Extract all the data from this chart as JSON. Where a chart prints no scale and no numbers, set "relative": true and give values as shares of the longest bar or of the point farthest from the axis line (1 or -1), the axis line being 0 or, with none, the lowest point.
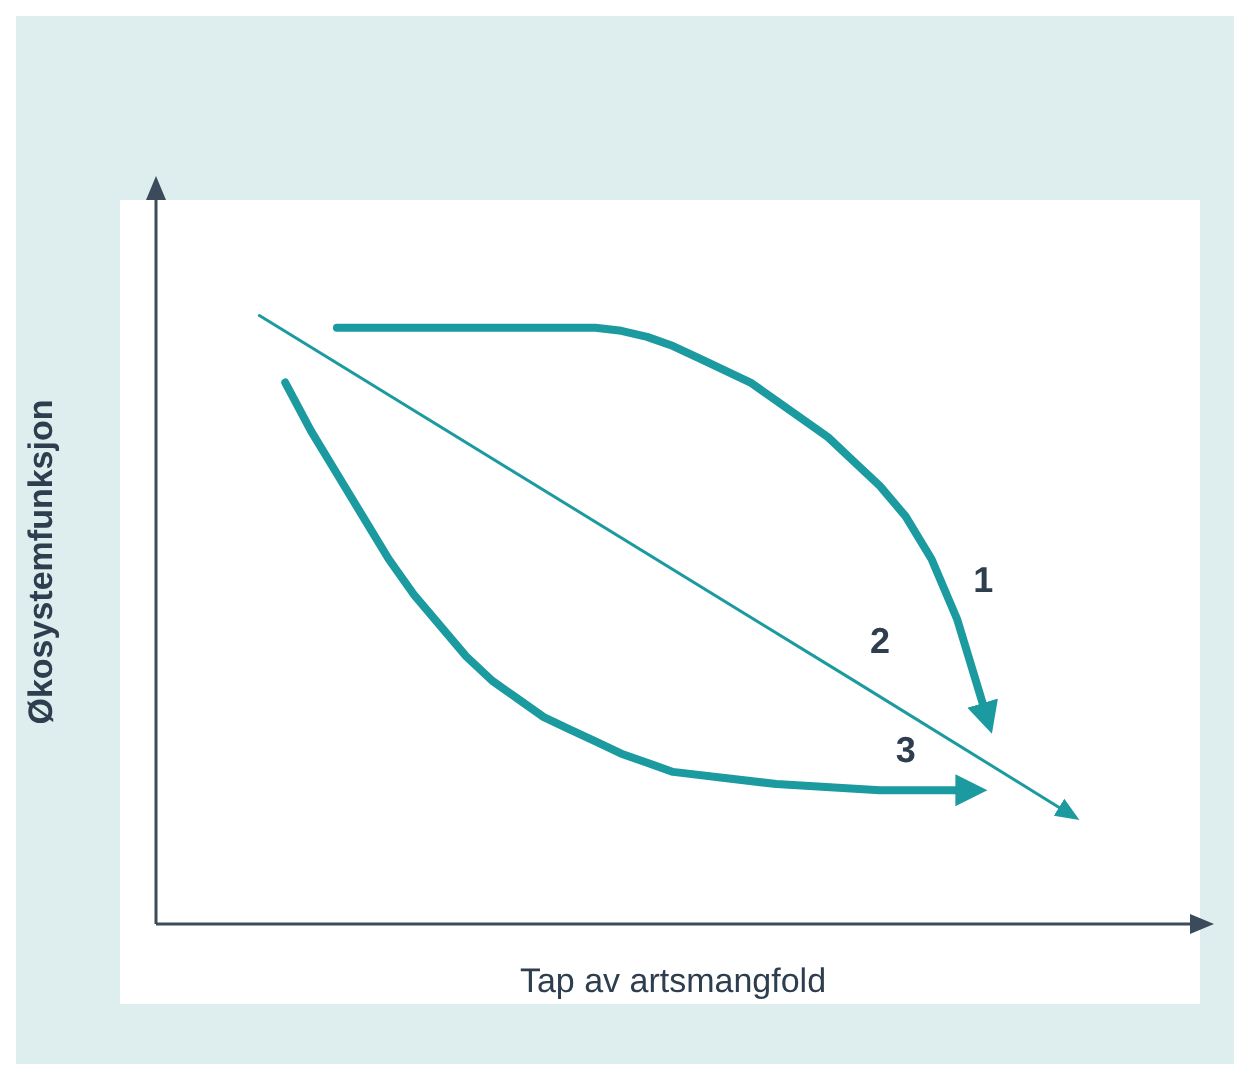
{
  "chart_data": {
    "type": "line",
    "relative": true,
    "xlabel": "Tap av artsmangfold",
    "ylabel": "Økosystemfunksjon",
    "marker": "none",
    "categories": [
      null,
      null,
      null,
      null,
      null,
      null,
      null,
      null,
      null,
      null,
      null,
      null,
      null,
      null,
      null,
      null,
      null,
      null,
      null,
      null,
      null,
      null,
      null,
      null,
      null,
      null,
      null,
      null,
      null,
      null,
      null,
      null,
      null,
      null,
      null,
      null,
      null,
      null,
      null,
      null,
      null
    ],
    "series": [
      {
        "name": "1",
        "color": "#1b9aa0",
        "values": [
          null,
          null,
          null,
          null,
          null,
          null,
          null,
          0.98,
          null,
          null,
          0.98,
          null,
          null,
          null,
          0.98,
          null,
          null,
          0.98,
          0.975,
          0.965,
          0.95,
          0.93,
          0.91,
          0.89,
          0.86,
          0.83,
          0.8,
          0.76,
          0.72,
          0.67,
          0.6,
          0.5,
          0.36,
          null,
          null,
          null,
          null,
          null,
          null,
          null,
          null
        ]
      },
      {
        "name": "2",
        "color": "#1b9aa0",
        "values": [
          null,
          null,
          null,
          null,
          1,
          null,
          null,
          null,
          null,
          null,
          null,
          null,
          null,
          null,
          null,
          null,
          null,
          null,
          null,
          null,
          null,
          null,
          null,
          null,
          null,
          null,
          null,
          0.4,
          null,
          null,
          null,
          null,
          null,
          null,
          null,
          0.19,
          null,
          null,
          null,
          null,
          null
        ]
      },
      {
        "name": "3",
        "color": "#1b9aa0",
        "values": [
          null,
          null,
          null,
          null,
          null,
          0.89,
          0.81,
          0.74,
          0.67,
          0.6,
          0.54,
          0.49,
          0.44,
          0.4,
          0.37,
          0.34,
          0.32,
          0.3,
          0.28,
          0.265,
          0.25,
          null,
          0.24,
          null,
          0.23,
          null,
          null,
          null,
          0.22,
          null,
          null,
          0.22,
          null,
          null,
          null,
          null,
          null,
          null,
          null,
          null,
          null
        ]
      }
    ]
  }
}
